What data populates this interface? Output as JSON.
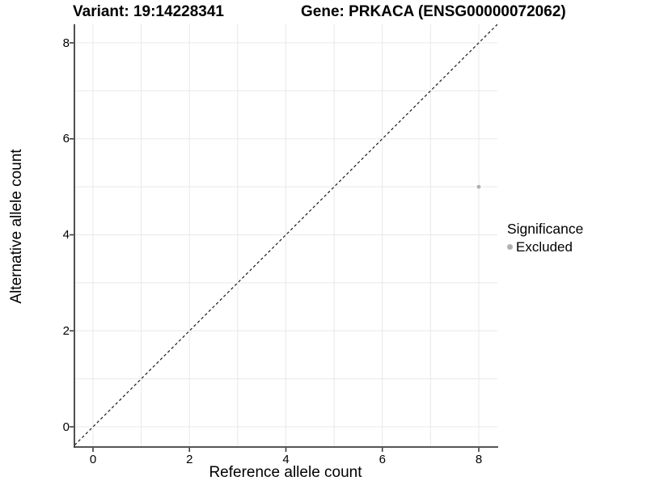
{
  "chart_data": {
    "type": "scatter",
    "title_left": "Variant: 19:14228341",
    "title_right": "Gene: PRKACA (ENSG00000072062)",
    "xlabel": "Reference allele count",
    "ylabel": "Alternative allele count",
    "xticks": [
      0,
      2,
      4,
      6,
      8
    ],
    "yticks": [
      0,
      2,
      4,
      6,
      8
    ],
    "xlim": [
      -0.39,
      8.39
    ],
    "ylim": [
      -0.42,
      8.39
    ],
    "grid_values": [
      0,
      1,
      2,
      3,
      4,
      5,
      6,
      7,
      8
    ],
    "grid": {
      "show": true,
      "color": "#e8e8e8"
    },
    "identity_line": {
      "slope": 1,
      "intercept": 0,
      "style": "dashed",
      "color": "#1a1a1a"
    },
    "series": [
      {
        "name": "Excluded",
        "color": "#b0b0b0",
        "points": [
          {
            "x": 8,
            "y": 5
          }
        ]
      }
    ],
    "legend": {
      "title": "Significance",
      "position": "right",
      "entries": [
        {
          "label": "Excluded",
          "color": "#b0b0b0"
        }
      ]
    },
    "axis_color": "#3d3d3d",
    "background": "#ffffff"
  }
}
